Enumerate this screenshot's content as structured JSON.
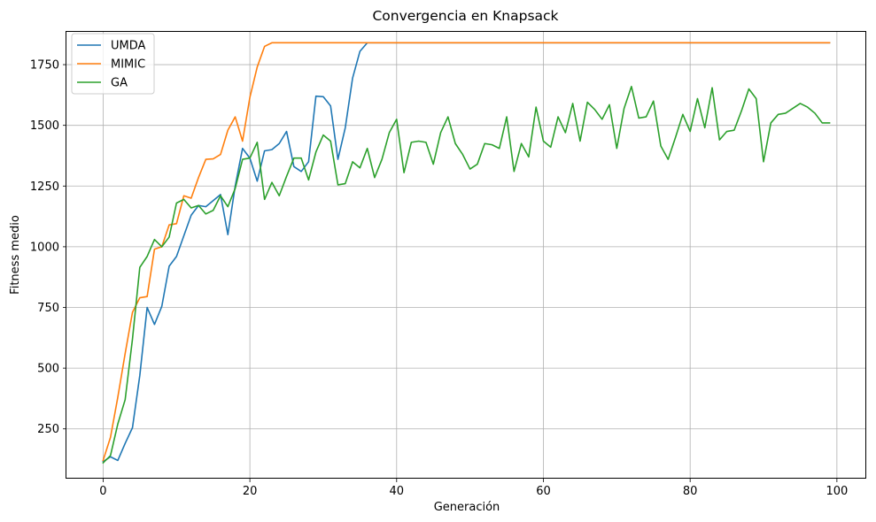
{
  "chart_data": {
    "type": "line",
    "title": "Convergencia en Knapsack",
    "xlabel": "Generación",
    "ylabel": "Fitness medio",
    "xlim": [
      -5,
      104
    ],
    "ylim": [
      45,
      1885
    ],
    "xticks": [
      0,
      20,
      40,
      60,
      80,
      100
    ],
    "yticks": [
      250,
      500,
      750,
      1000,
      1250,
      1500,
      1750
    ],
    "grid": true,
    "legend_position": "top-left",
    "series": [
      {
        "name": "UMDA",
        "color": "#1f77b4",
        "x": [
          0,
          1,
          2,
          3,
          4,
          5,
          6,
          7,
          8,
          9,
          10,
          11,
          12,
          13,
          14,
          15,
          16,
          17,
          18,
          19,
          20,
          21,
          22,
          23,
          24,
          25,
          26,
          27,
          28,
          29,
          30,
          31,
          32,
          33,
          34,
          35,
          36,
          37,
          38,
          39,
          40,
          41,
          42,
          43,
          44,
          45,
          46,
          47,
          48,
          49,
          50,
          51,
          52,
          53,
          54,
          55,
          56,
          57,
          58,
          59,
          60,
          61,
          62,
          63,
          64,
          65,
          66,
          67,
          68,
          69,
          70,
          71,
          72,
          73,
          74,
          75,
          76,
          77,
          78,
          79,
          80,
          81,
          82,
          83,
          84,
          85,
          86,
          87,
          88,
          89,
          90,
          91,
          92,
          93,
          94,
          95,
          96,
          97,
          98,
          99
        ],
        "values": [
          115,
          135,
          120,
          190,
          255,
          470,
          750,
          680,
          755,
          920,
          960,
          1045,
          1130,
          1170,
          1165,
          1190,
          1215,
          1050,
          1250,
          1405,
          1365,
          1270,
          1395,
          1400,
          1425,
          1475,
          1330,
          1310,
          1350,
          1620,
          1618,
          1580,
          1360,
          1490,
          1695,
          1805,
          1840,
          1840,
          1840,
          1840,
          1840,
          1840,
          1840,
          1840,
          1840,
          1840,
          1840,
          1840,
          1840,
          1840,
          1840,
          1840,
          1840,
          1840,
          1840,
          1840,
          1840,
          1840,
          1840,
          1840,
          1840,
          1840,
          1840,
          1840,
          1840,
          1840,
          1840,
          1840,
          1840,
          1840,
          1840,
          1840,
          1840,
          1840,
          1840,
          1840,
          1840,
          1840,
          1840,
          1840,
          1840,
          1840,
          1840,
          1840,
          1840,
          1840,
          1840,
          1840,
          1840,
          1840,
          1840,
          1840,
          1840,
          1840,
          1840,
          1840,
          1840,
          1840,
          1840,
          1840
        ]
      },
      {
        "name": "MIMIC",
        "color": "#ff7f0e",
        "x": [
          0,
          1,
          2,
          3,
          4,
          5,
          6,
          7,
          8,
          9,
          10,
          11,
          12,
          13,
          14,
          15,
          16,
          17,
          18,
          19,
          20,
          21,
          22,
          23,
          24,
          25,
          26,
          27,
          28,
          29,
          30,
          31,
          32,
          33,
          34,
          35,
          36,
          37,
          38,
          39,
          40,
          41,
          42,
          43,
          44,
          45,
          46,
          47,
          48,
          49,
          50,
          51,
          52,
          53,
          54,
          55,
          56,
          57,
          58,
          59,
          60,
          61,
          62,
          63,
          64,
          65,
          66,
          67,
          68,
          69,
          70,
          71,
          72,
          73,
          74,
          75,
          76,
          77,
          78,
          79,
          80,
          81,
          82,
          83,
          84,
          85,
          86,
          87,
          88,
          89,
          90,
          91,
          92,
          93,
          94,
          95,
          96,
          97,
          98,
          99
        ],
        "values": [
          120,
          215,
          380,
          560,
          730,
          790,
          795,
          990,
          1000,
          1090,
          1095,
          1210,
          1200,
          1285,
          1360,
          1362,
          1380,
          1480,
          1535,
          1435,
          1615,
          1740,
          1825,
          1840,
          1840,
          1840,
          1840,
          1840,
          1840,
          1840,
          1840,
          1840,
          1840,
          1840,
          1840,
          1840,
          1840,
          1840,
          1840,
          1840,
          1840,
          1840,
          1840,
          1840,
          1840,
          1840,
          1840,
          1840,
          1840,
          1840,
          1840,
          1840,
          1840,
          1840,
          1840,
          1840,
          1840,
          1840,
          1840,
          1840,
          1840,
          1840,
          1840,
          1840,
          1840,
          1840,
          1840,
          1840,
          1840,
          1840,
          1840,
          1840,
          1840,
          1840,
          1840,
          1840,
          1840,
          1840,
          1840,
          1840,
          1840,
          1840,
          1840,
          1840,
          1840,
          1840,
          1840,
          1840,
          1840,
          1840,
          1840,
          1840,
          1840,
          1840,
          1840,
          1840,
          1840,
          1840,
          1840,
          1840
        ]
      },
      {
        "name": "GA",
        "color": "#2ca02c",
        "x": [
          0,
          1,
          2,
          3,
          4,
          5,
          6,
          7,
          8,
          9,
          10,
          11,
          12,
          13,
          14,
          15,
          16,
          17,
          18,
          19,
          20,
          21,
          22,
          23,
          24,
          25,
          26,
          27,
          28,
          29,
          30,
          31,
          32,
          33,
          34,
          35,
          36,
          37,
          38,
          39,
          40,
          41,
          42,
          43,
          44,
          45,
          46,
          47,
          48,
          49,
          50,
          51,
          52,
          53,
          54,
          55,
          56,
          57,
          58,
          59,
          60,
          61,
          62,
          63,
          64,
          65,
          66,
          67,
          68,
          69,
          70,
          71,
          72,
          73,
          74,
          75,
          76,
          77,
          78,
          79,
          80,
          81,
          82,
          83,
          84,
          85,
          86,
          87,
          88,
          89,
          90,
          91,
          92,
          93,
          94,
          95,
          96,
          97,
          98,
          99
        ],
        "values": [
          110,
          140,
          270,
          370,
          620,
          915,
          960,
          1030,
          1000,
          1040,
          1180,
          1195,
          1160,
          1170,
          1135,
          1150,
          1210,
          1165,
          1240,
          1360,
          1365,
          1430,
          1195,
          1265,
          1210,
          1290,
          1365,
          1365,
          1275,
          1390,
          1460,
          1435,
          1255,
          1260,
          1350,
          1325,
          1405,
          1285,
          1360,
          1470,
          1525,
          1305,
          1430,
          1435,
          1430,
          1340,
          1470,
          1535,
          1425,
          1380,
          1320,
          1340,
          1425,
          1420,
          1405,
          1535,
          1310,
          1425,
          1370,
          1575,
          1435,
          1410,
          1535,
          1470,
          1590,
          1435,
          1595,
          1565,
          1525,
          1585,
          1405,
          1570,
          1660,
          1530,
          1535,
          1600,
          1415,
          1360,
          1450,
          1545,
          1475,
          1610,
          1490,
          1655,
          1440,
          1475,
          1480,
          1560,
          1650,
          1610,
          1350,
          1510,
          1545,
          1550,
          1570,
          1590,
          1575,
          1550,
          1510,
          1510
        ]
      }
    ]
  }
}
